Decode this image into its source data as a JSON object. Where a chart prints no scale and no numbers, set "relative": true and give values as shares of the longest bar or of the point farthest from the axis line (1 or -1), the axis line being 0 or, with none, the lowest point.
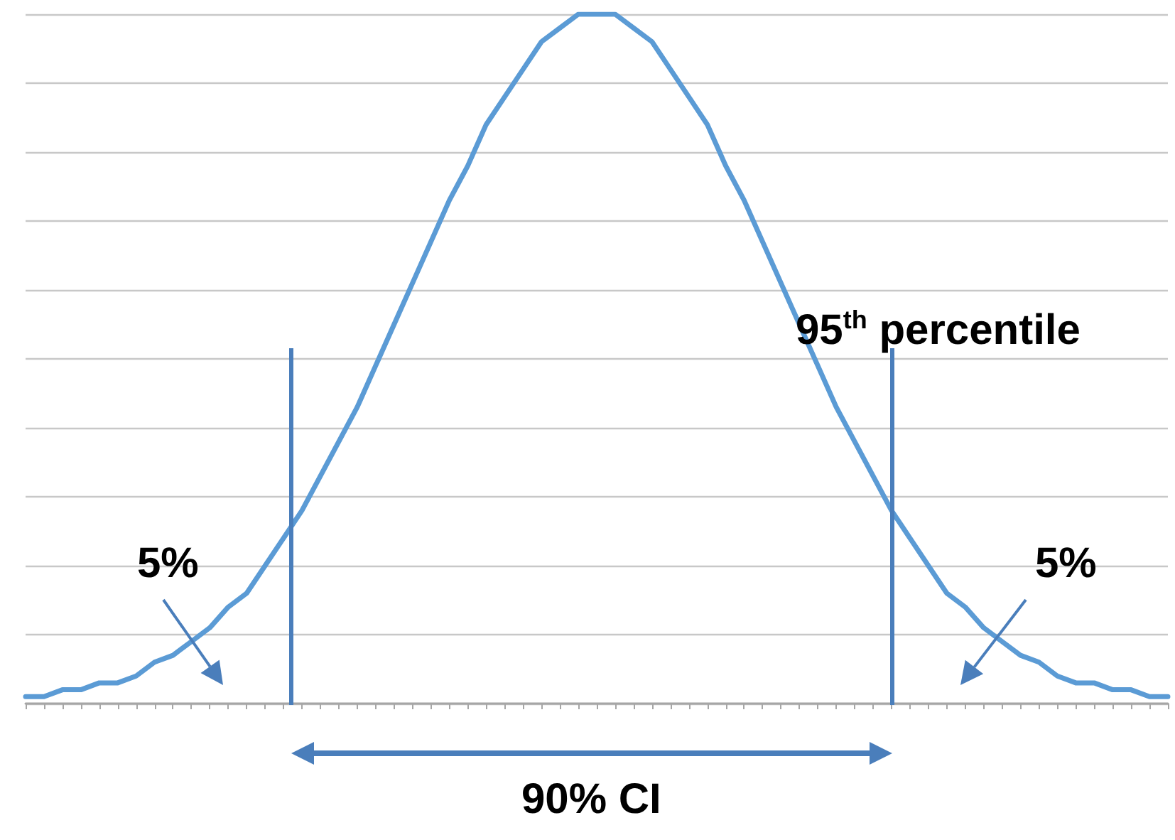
{
  "chart_data": {
    "type": "line",
    "relative": true,
    "categories": [
      null,
      null,
      null,
      null,
      null,
      null,
      null,
      null,
      null,
      null,
      null,
      null,
      null,
      null,
      null,
      null,
      null,
      null,
      null,
      null,
      null,
      null,
      null,
      null,
      null,
      null,
      null,
      null,
      null,
      null,
      null,
      null,
      null,
      null,
      null,
      null,
      null,
      null,
      null,
      null,
      null,
      null,
      null,
      null,
      null,
      null,
      null,
      null,
      null,
      null,
      null,
      null,
      null,
      null,
      null,
      null,
      null,
      null,
      null,
      null,
      null,
      null,
      null
    ],
    "series": [
      {
        "color": "#5b9bd5",
        "values": [
          0.01,
          0.01,
          0.02,
          0.02,
          0.03,
          0.03,
          0.04,
          0.06,
          0.07,
          0.09,
          0.11,
          0.14,
          0.16,
          0.2,
          0.24,
          0.28,
          0.33,
          0.38,
          0.43,
          0.49,
          0.55,
          0.61,
          0.67,
          0.73,
          0.78,
          0.84,
          0.88,
          0.92,
          0.96,
          0.98,
          1.0,
          1.0,
          1.0,
          0.98,
          0.96,
          0.92,
          0.88,
          0.84,
          0.78,
          0.73,
          0.67,
          0.61,
          0.55,
          0.49,
          0.43,
          0.38,
          0.33,
          0.28,
          0.24,
          0.2,
          0.16,
          0.14,
          0.11,
          0.09,
          0.07,
          0.06,
          0.04,
          0.03,
          0.03,
          0.02,
          0.02,
          0.01,
          0.01
        ]
      }
    ],
    "annotations": [
      "95$^{th}$ percentile",
      "5%",
      "5%",
      "90% CI"
    ],
    "grid": "y",
    "marker": "none",
    "line_style": "solid"
  }
}
